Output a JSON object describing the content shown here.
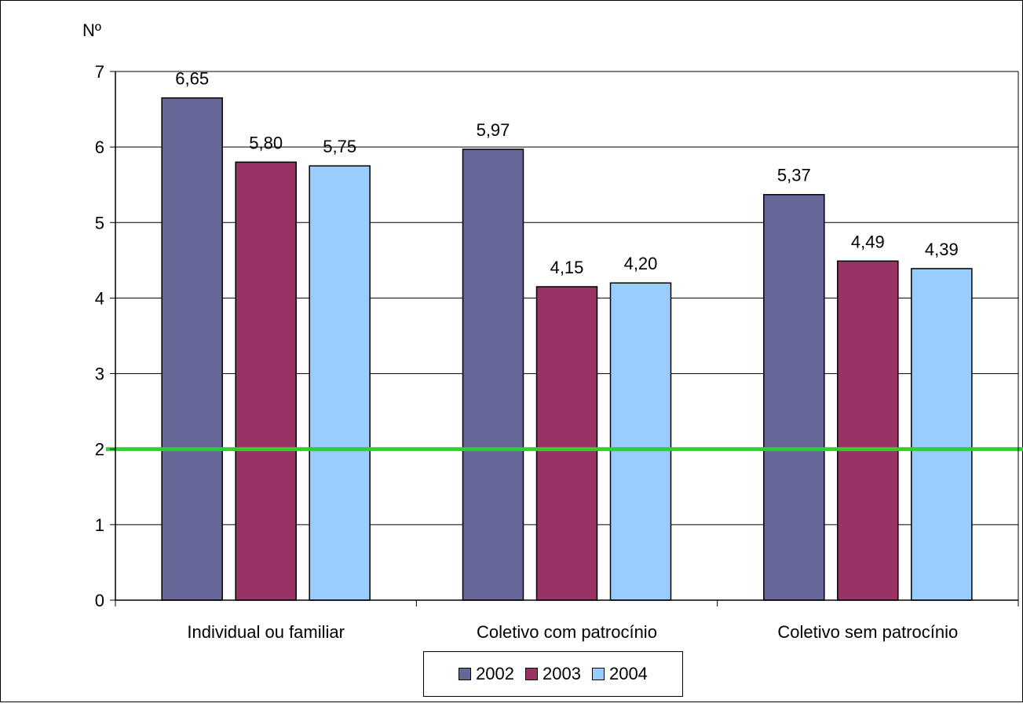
{
  "chart_data": {
    "type": "bar",
    "ylabel": "Nº",
    "categories": [
      "Individual ou familiar",
      "Coletivo com patrocínio",
      "Coletivo sem patrocínio"
    ],
    "series": [
      {
        "name": "2002",
        "color": "#666699",
        "values": [
          6.65,
          5.97,
          5.37
        ],
        "labels": [
          "6,65",
          "5,97",
          "5,37"
        ]
      },
      {
        "name": "2003",
        "color": "#993366",
        "values": [
          5.8,
          4.15,
          4.49
        ],
        "labels": [
          "5,80",
          "4,15",
          "4,49"
        ]
      },
      {
        "name": "2004",
        "color": "#99CCFF",
        "values": [
          5.75,
          4.2,
          4.39
        ],
        "labels": [
          "5,75",
          "4,20",
          "4,39"
        ]
      }
    ],
    "ylim": [
      0,
      7
    ],
    "yticks": [
      "0",
      "1",
      "2",
      "3",
      "4",
      "5",
      "6",
      "7"
    ],
    "grid": true,
    "legend_position": "bottom",
    "reference_line": {
      "value": 2,
      "color": "#33CC33"
    }
  }
}
